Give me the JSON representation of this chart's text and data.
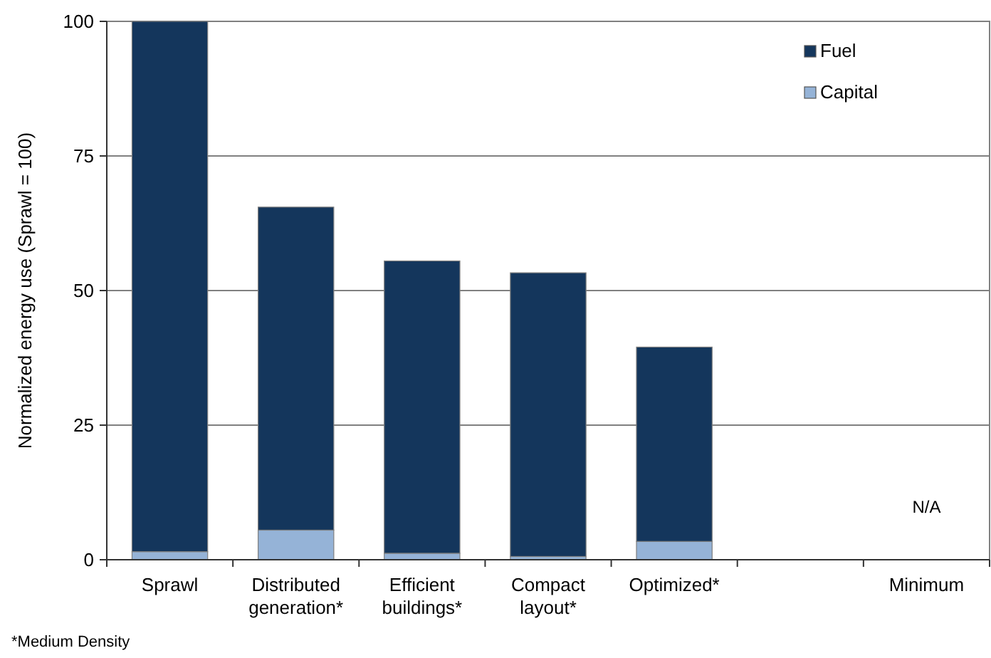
{
  "chart_data": {
    "type": "bar",
    "stacked": true,
    "ylabel": "Normalized energy use (Sprawl = 100)",
    "categories": [
      "Sprawl",
      "Distributed generation*",
      "Efficient buildings*",
      "Compact layout*",
      "Optimized*",
      null,
      "Minimum"
    ],
    "series": [
      {
        "name": "Capital",
        "color": "#95b3d7",
        "values": [
          1.5,
          5.5,
          1.2,
          0.6,
          3.4,
          null,
          null
        ]
      },
      {
        "name": "Fuel",
        "color": "#14365c",
        "values": [
          98.5,
          60,
          54.3,
          52.7,
          36.1,
          null,
          null
        ]
      }
    ],
    "ylim": [
      0,
      100
    ],
    "yticks": [
      0,
      25,
      50,
      75,
      100
    ],
    "grid": "y",
    "legend": "top right",
    "annotations": [
      "N/A",
      "*Medium Density"
    ]
  }
}
